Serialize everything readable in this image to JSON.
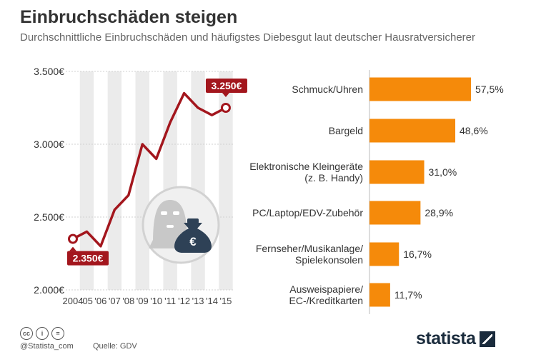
{
  "title": "Einbruchschäden steigen",
  "subtitle": "Durchschnittliche Einbruchschäden und häufigstes Diebesgut laut deutscher Hausratversicherer",
  "chart_data": [
    {
      "type": "line",
      "x": [
        "2004",
        "'05",
        "'06",
        "'07",
        "'08",
        "'09",
        "'10",
        "'11",
        "'12",
        "'13",
        "'14",
        "'15"
      ],
      "y": [
        2350,
        2400,
        2300,
        2550,
        2650,
        3000,
        2900,
        3150,
        3350,
        3250,
        3200,
        3250
      ],
      "yticks": [
        "2.000€",
        "2.500€",
        "3.000€",
        "3.500€"
      ],
      "ylim": [
        2000,
        3500
      ],
      "color": "#a3161d",
      "callouts": {
        "start": "2.350€",
        "end": "3.250€"
      },
      "grid": true
    },
    {
      "type": "bar",
      "orientation": "horizontal",
      "color": "#f58a0a",
      "categories": [
        [
          "Schmuck/Uhren"
        ],
        [
          "Bargeld"
        ],
        [
          "Elektronische Kleingeräte",
          "(z. B. Handy)"
        ],
        [
          "PC/Laptop/EDV-Zubehör"
        ],
        [
          "Fernseher/Musikanlage/",
          "Spielekonsolen"
        ],
        [
          "Ausweispapiere/",
          "EC-/Kreditkarten"
        ]
      ],
      "values": [
        57.5,
        48.6,
        31.0,
        28.9,
        16.7,
        11.7
      ],
      "value_labels": [
        "57,5%",
        "48,6%",
        "31,0%",
        "28,9%",
        "16,7%",
        "11,7%"
      ]
    }
  ],
  "illustration": {
    "icons": [
      "burglar-mask-icon",
      "money-bag-icon"
    ],
    "money_symbol": "€"
  },
  "footer": {
    "license_icons": [
      "cc",
      "person",
      "equals"
    ],
    "credit": "@Statista_com",
    "source": "Quelle: GDV",
    "brand": "statista"
  }
}
